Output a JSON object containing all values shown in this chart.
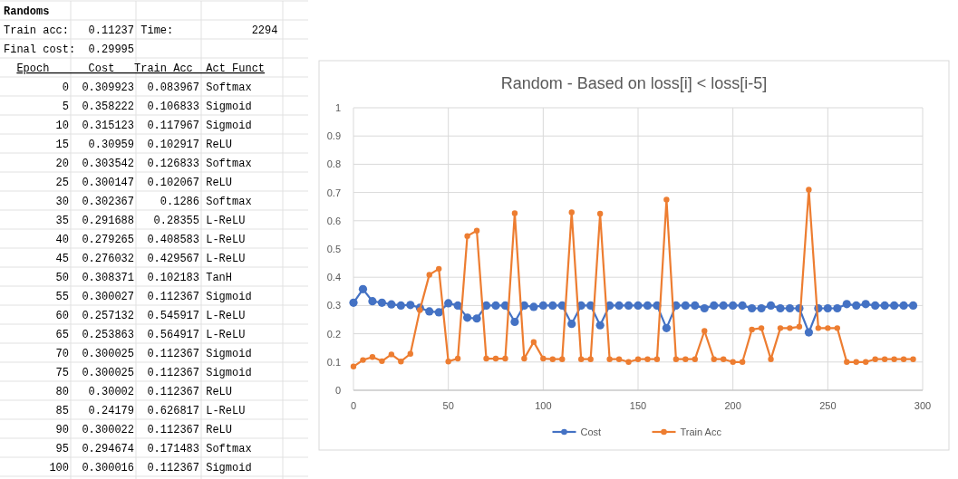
{
  "chart_data": [
    {
      "type": "other",
      "annotations": [
        "Randoms",
        "Train acc:\t0.11237\tTime:\t2294",
        "Final cost:\t0.29995",
        "Epoch\tCost\tTrain Acc\tAct Funct",
        "0\t0.309923\t0.083967\tSoftmax",
        "5\t0.358222\t0.106833\tSigmoid",
        "10\t0.315123\t0.117967\tSigmoid",
        "15\t0.30959\t0.102917\tReLU",
        "20\t0.303542\t0.126833\tSoftmax",
        "25\t0.300147\t0.102067\tReLU",
        "30\t0.302367\t0.1286\tSoftmax",
        "35\t0.291688\t0.28355\tL-ReLU",
        "40\t0.279265\t0.408583\tL-ReLU",
        "45\t0.276032\t0.429567\tL-ReLU",
        "50\t0.308371\t0.102183\tTanH",
        "55\t0.300027\t0.112367\tSigmoid",
        "60\t0.257132\t0.545917\tL-ReLU",
        "65\t0.253863\t0.564917\tL-ReLU",
        "70\t0.300025\t0.112367\tSigmoid",
        "75\t0.300025\t0.112367\tSigmoid",
        "80\t0.30002\t0.112367\tReLU",
        "85\t0.24179\t0.626817\tL-ReLU",
        "90\t0.300022\t0.112367\tReLU",
        "95\t0.294674\t0.171483\tSoftmax",
        "100\t0.300016\t0.112367\tSigmoid"
      ]
    },
    {
      "type": "line",
      "title": "Random - Based on loss[i] < loss[i-5]",
      "x": [
        0,
        5,
        10,
        15,
        20,
        25,
        30,
        35,
        40,
        45,
        50,
        55,
        60,
        65,
        70,
        75,
        80,
        85,
        90,
        95,
        100,
        105,
        110,
        115,
        120,
        125,
        130,
        135,
        140,
        145,
        150,
        155,
        160,
        165,
        170,
        175,
        180,
        185,
        190,
        195,
        200,
        205,
        210,
        215,
        220,
        225,
        230,
        235,
        240,
        245,
        250,
        255,
        260,
        265,
        270,
        275,
        280,
        285,
        290,
        295
      ],
      "series": [
        {
          "name": "Cost",
          "color": "#4472c4",
          "values": [
            0.31,
            0.358,
            0.315,
            0.31,
            0.304,
            0.3,
            0.302,
            0.292,
            0.279,
            0.276,
            0.308,
            0.3,
            0.257,
            0.254,
            0.3,
            0.3,
            0.3,
            0.242,
            0.3,
            0.295,
            0.3,
            0.3,
            0.3,
            0.235,
            0.3,
            0.3,
            0.23,
            0.3,
            0.3,
            0.3,
            0.3,
            0.3,
            0.3,
            0.22,
            0.3,
            0.3,
            0.3,
            0.29,
            0.3,
            0.3,
            0.3,
            0.3,
            0.29,
            0.29,
            0.3,
            0.29,
            0.29,
            0.29,
            0.205,
            0.29,
            0.29,
            0.29,
            0.305,
            0.3,
            0.305,
            0.3,
            0.3,
            0.3,
            0.3,
            0.3
          ]
        },
        {
          "name": "Train Acc",
          "color": "#ed7d31",
          "values": [
            0.084,
            0.107,
            0.118,
            0.103,
            0.127,
            0.102,
            0.129,
            0.284,
            0.409,
            0.43,
            0.102,
            0.112,
            0.546,
            0.565,
            0.112,
            0.112,
            0.112,
            0.627,
            0.112,
            0.171,
            0.112,
            0.11,
            0.11,
            0.63,
            0.11,
            0.11,
            0.625,
            0.11,
            0.11,
            0.1,
            0.11,
            0.11,
            0.11,
            0.675,
            0.11,
            0.11,
            0.11,
            0.21,
            0.11,
            0.11,
            0.1,
            0.1,
            0.215,
            0.22,
            0.11,
            0.22,
            0.22,
            0.225,
            0.71,
            0.22,
            0.22,
            0.22,
            0.1,
            0.1,
            0.1,
            0.11,
            0.11,
            0.11,
            0.11,
            0.11
          ]
        }
      ],
      "xlim": [
        0,
        300
      ],
      "xticks": [
        0,
        50,
        100,
        150,
        200,
        250,
        300
      ],
      "ylim": [
        0,
        1
      ],
      "yticks": [
        0,
        0.1,
        0.2,
        0.3,
        0.4,
        0.5,
        0.6,
        0.7,
        0.8,
        0.9,
        1
      ],
      "grid": true,
      "legend": "bottom",
      "marker": "circle",
      "line_style": "solid"
    }
  ]
}
